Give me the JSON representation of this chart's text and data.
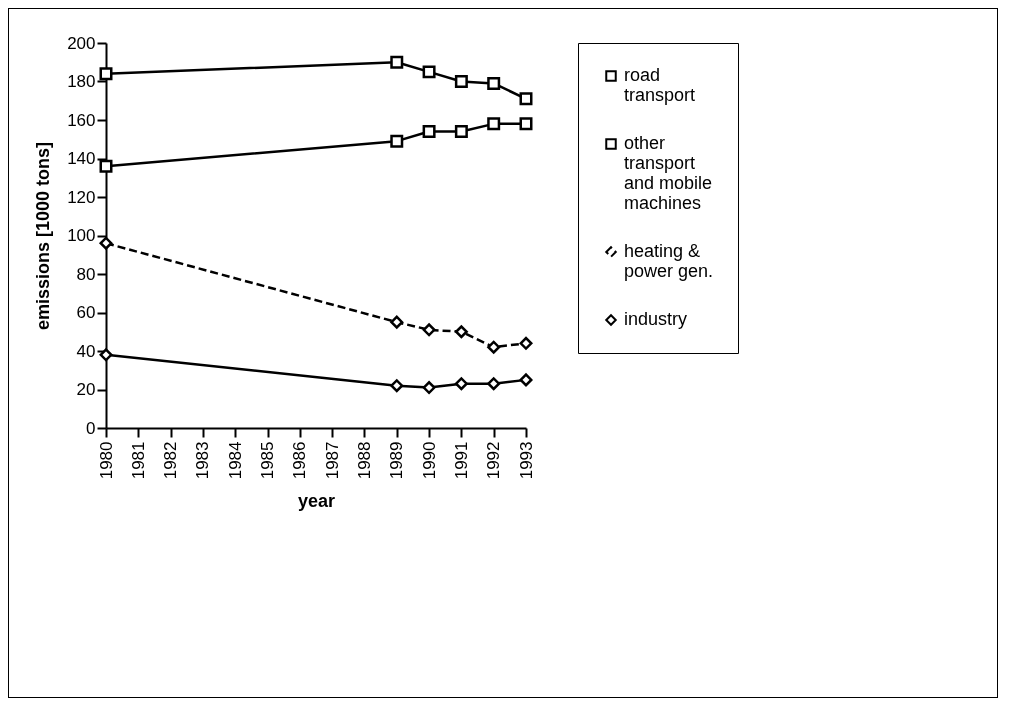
{
  "chart_data": {
    "type": "line",
    "xlabel": "year",
    "ylabel": "emissions  [1000  tons]",
    "xlim": [
      1980,
      1993
    ],
    "xticks": [
      1980,
      1981,
      1982,
      1983,
      1984,
      1985,
      1986,
      1987,
      1988,
      1989,
      1990,
      1991,
      1992,
      1993
    ],
    "ylim": [
      0,
      200
    ],
    "yticks": [
      0,
      20,
      40,
      60,
      80,
      100,
      120,
      140,
      160,
      180,
      200
    ],
    "grid": false,
    "legend": "right",
    "series": [
      {
        "name": "road transport",
        "color": "#000000",
        "marker": "square",
        "line_style": "solid",
        "x": [
          1980,
          1989,
          1990,
          1991,
          1992,
          1993
        ],
        "values": [
          184,
          190,
          185,
          180,
          179,
          171
        ]
      },
      {
        "name": "other transport and mobile machines",
        "color": "#000000",
        "marker": "square",
        "line_style": "solid",
        "x": [
          1980,
          1989,
          1990,
          1991,
          1992,
          1993
        ],
        "values": [
          136,
          149,
          154,
          154,
          158,
          158
        ]
      },
      {
        "name": "heating & power gen.",
        "color": "#000000",
        "marker": "diamond",
        "line_style": "dashed",
        "x": [
          1980,
          1989,
          1990,
          1991,
          1992,
          1993
        ],
        "values": [
          96,
          55,
          51,
          50,
          42,
          44
        ]
      },
      {
        "name": "industry",
        "color": "#000000",
        "marker": "diamond",
        "line_style": "solid",
        "x": [
          1980,
          1989,
          1990,
          1991,
          1992,
          1993
        ],
        "values": [
          38,
          22,
          21,
          23,
          23,
          25
        ]
      }
    ]
  }
}
